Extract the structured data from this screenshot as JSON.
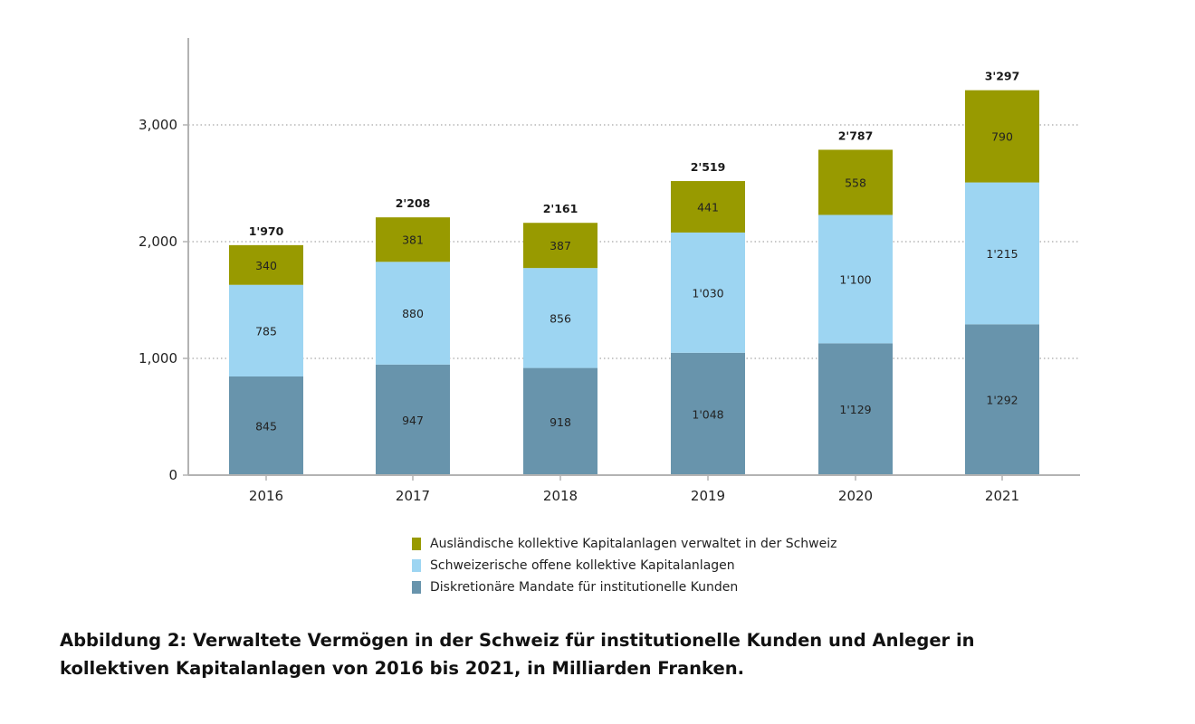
{
  "chart_data": {
    "type": "bar",
    "stacked": true,
    "title": "",
    "xlabel": "",
    "ylabel": "",
    "categories": [
      "2016",
      "2017",
      "2018",
      "2019",
      "2020",
      "2021"
    ],
    "series": [
      {
        "name": "Diskretionäre Mandate für institutionelle Kunden",
        "color": "#6894ac",
        "values": [
          845,
          947,
          918,
          1048,
          1129,
          1292
        ],
        "labels": [
          "845",
          "947",
          "918",
          "1'048",
          "1'129",
          "1'292"
        ]
      },
      {
        "name": "Schweizerische offene kollektive Kapitalanlagen",
        "color": "#9dd5f2",
        "values": [
          785,
          880,
          856,
          1030,
          1100,
          1215
        ],
        "labels": [
          "785",
          "880",
          "856",
          "1'030",
          "1'100",
          "1'215"
        ]
      },
      {
        "name": "Ausländische kollektive Kapitalanlagen verwaltet in der Schweiz",
        "color": "#989a00",
        "values": [
          340,
          381,
          387,
          441,
          558,
          790
        ],
        "labels": [
          "340",
          "381",
          "387",
          "441",
          "558",
          "790"
        ]
      }
    ],
    "totals": [
      1970,
      2208,
      2161,
      2519,
      2787,
      3297
    ],
    "total_labels": [
      "1'970",
      "2'208",
      "2'161",
      "2'519",
      "2'787",
      "3'297"
    ],
    "ylim": [
      0,
      3700
    ],
    "yticks": [
      0,
      1000,
      2000,
      3000
    ],
    "ytick_labels": [
      "0",
      "1,000",
      "2,000",
      "3,000"
    ],
    "grid": "horizontal-dotted",
    "legend_position": "bottom",
    "legend_order": [
      2,
      1,
      0
    ]
  },
  "caption": {
    "line1": "Abbildung 2: Verwaltete Vermögen in der Schweiz für institutionelle Kunden und Anleger in",
    "line2": "kollektiven Kapitalanlagen von 2016 bis 2021, in Milliarden Franken."
  },
  "colors": {
    "axis": "#b3b3b3",
    "grid": "#a8a8a8"
  }
}
